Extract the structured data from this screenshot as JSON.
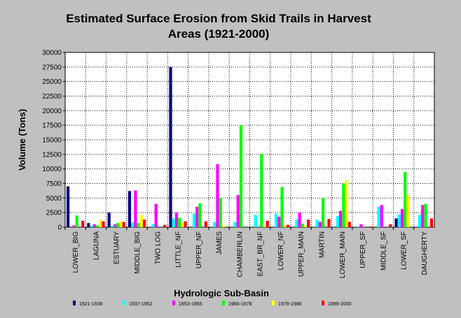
{
  "chart_data": {
    "type": "bar",
    "title_line1": "Estimated Surface Erosion from Skid Trails in Harvest",
    "title_line2": "Areas (1921-2000)",
    "xlabel": "Hydrologic Sub-Basin",
    "ylabel": "Volume (Tons)",
    "ylim": [
      0,
      30000
    ],
    "y_ticks": [
      0,
      2500,
      5000,
      7500,
      10000,
      12500,
      15000,
      17500,
      20000,
      22500,
      25000,
      27500,
      30000
    ],
    "grid": true,
    "legend_position": "bottom",
    "categories": [
      "LOWER_BIG",
      "LAGUNA",
      "ESTUARY",
      "MIDDLE_BIG",
      "TWO LOG",
      "LITTLE_NF",
      "UPPER_NF",
      "JAMES",
      "CHAMBERLIN",
      "EAST_BR_NF",
      "LOWER_NF",
      "UPPER_MAIN",
      "MARTIN",
      "LOWER_MAIN",
      "UPPER_SF",
      "MIDDLE_SF",
      "LOWER_SF",
      "DAUGHERTY"
    ],
    "series": [
      {
        "name": "1921-1936",
        "color": "#000080",
        "values": [
          7000,
          700,
          2500,
          6200,
          0,
          27500,
          0,
          0,
          0,
          0,
          0,
          0,
          0,
          0,
          0,
          0,
          1500,
          0
        ]
      },
      {
        "name": "1937-1952",
        "color": "#00ffff",
        "values": [
          0,
          200,
          200,
          800,
          500,
          1500,
          2300,
          900,
          900,
          2100,
          2300,
          1300,
          1300,
          1900,
          100,
          3500,
          2200,
          2100
        ]
      },
      {
        "name": "1953-1965",
        "color": "#ff00ff",
        "values": [
          300,
          500,
          500,
          6300,
          4000,
          2500,
          3500,
          10800,
          5500,
          100,
          1800,
          2500,
          900,
          2800,
          500,
          3800,
          3100,
          3800
        ]
      },
      {
        "name": "1966-1978",
        "color": "#00ff00",
        "values": [
          2000,
          300,
          700,
          700,
          0,
          1600,
          4100,
          5000,
          17500,
          12600,
          6900,
          600,
          5000,
          7500,
          0,
          0,
          9500,
          4000
        ]
      },
      {
        "name": "1979-1988",
        "color": "#ffff00",
        "values": [
          0,
          1300,
          1000,
          2100,
          0,
          800,
          0,
          300,
          0,
          200,
          300,
          300,
          0,
          8100,
          0,
          0,
          5500,
          0
        ]
      },
      {
        "name": "1989-2000",
        "color": "#ff0000",
        "values": [
          1100,
          1000,
          900,
          1300,
          400,
          1000,
          1000,
          0,
          0,
          1100,
          400,
          1300,
          1400,
          900,
          100,
          500,
          0,
          1500
        ]
      }
    ]
  }
}
